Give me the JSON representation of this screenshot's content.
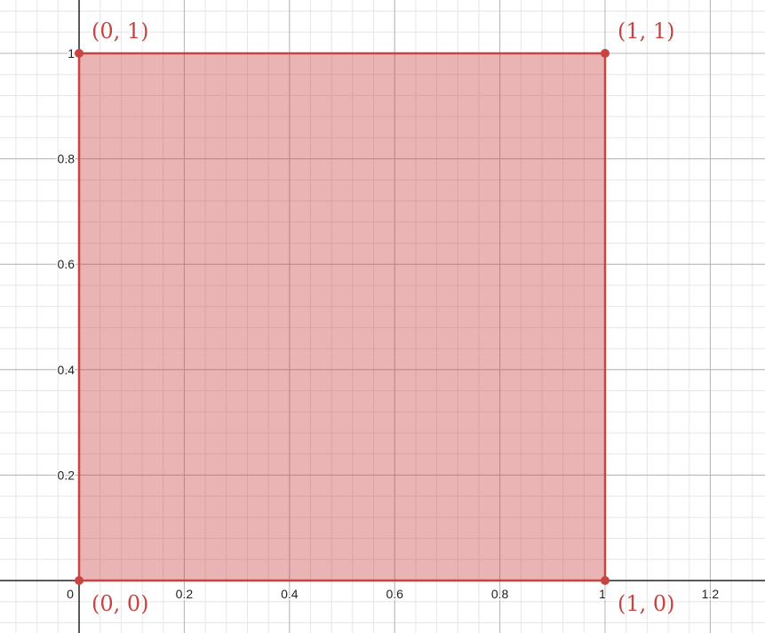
{
  "chart_data": {
    "type": "area",
    "title": "",
    "xlabel": "",
    "ylabel": "",
    "xlim": [
      -0.15,
      1.3
    ],
    "ylim": [
      -0.1,
      1.1
    ],
    "grid": true,
    "x_ticks": [
      0,
      0.2,
      0.4,
      0.6,
      0.8,
      1,
      1.2
    ],
    "x_tick_labels": [
      "0",
      "0.2",
      "0.4",
      "0.6",
      "0.8",
      "1",
      "1.2"
    ],
    "y_ticks": [
      0.2,
      0.4,
      0.6,
      0.8,
      1
    ],
    "y_tick_labels": [
      "0.2",
      "0.4",
      "0.6",
      "0.8",
      "1"
    ],
    "series": [
      {
        "color": "#c74440",
        "fill_opacity": 0.4,
        "points": [
          [
            0,
            0
          ],
          [
            1,
            0
          ],
          [
            1,
            1
          ],
          [
            0,
            1
          ]
        ],
        "vertex_labels": [
          "(0, 0)",
          "(1, 0)",
          "(1, 1)",
          "(0, 1)"
        ]
      }
    ]
  }
}
